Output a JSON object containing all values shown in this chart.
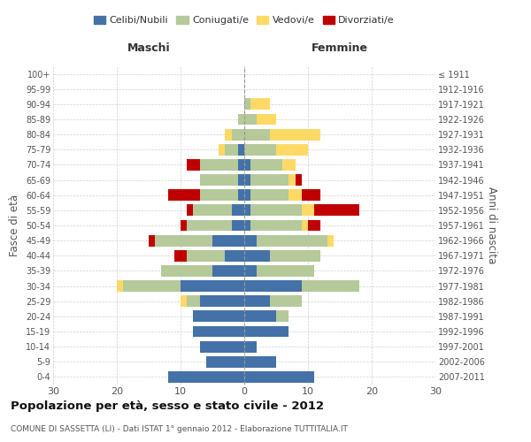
{
  "age_groups": [
    "0-4",
    "5-9",
    "10-14",
    "15-19",
    "20-24",
    "25-29",
    "30-34",
    "35-39",
    "40-44",
    "45-49",
    "50-54",
    "55-59",
    "60-64",
    "65-69",
    "70-74",
    "75-79",
    "80-84",
    "85-89",
    "90-94",
    "95-99",
    "100+"
  ],
  "birth_years": [
    "2007-2011",
    "2002-2006",
    "1997-2001",
    "1992-1996",
    "1987-1991",
    "1982-1986",
    "1977-1981",
    "1972-1976",
    "1967-1971",
    "1962-1966",
    "1957-1961",
    "1952-1956",
    "1947-1951",
    "1942-1946",
    "1937-1941",
    "1932-1936",
    "1927-1931",
    "1922-1926",
    "1917-1921",
    "1912-1916",
    "≤ 1911"
  ],
  "maschi": {
    "celibi": [
      12,
      6,
      7,
      8,
      8,
      7,
      10,
      5,
      3,
      5,
      2,
      2,
      1,
      1,
      1,
      1,
      0,
      0,
      0,
      0,
      0
    ],
    "coniugati": [
      0,
      0,
      0,
      0,
      0,
      2,
      9,
      8,
      6,
      9,
      7,
      6,
      6,
      6,
      6,
      2,
      2,
      1,
      0,
      0,
      0
    ],
    "vedovi": [
      0,
      0,
      0,
      0,
      0,
      1,
      1,
      0,
      0,
      0,
      0,
      0,
      0,
      0,
      0,
      1,
      1,
      0,
      0,
      0,
      0
    ],
    "divorziati": [
      0,
      0,
      0,
      0,
      0,
      0,
      0,
      0,
      2,
      1,
      1,
      1,
      5,
      0,
      2,
      0,
      0,
      0,
      0,
      0,
      0
    ]
  },
  "femmine": {
    "nubili": [
      11,
      5,
      2,
      7,
      5,
      4,
      9,
      2,
      4,
      2,
      1,
      1,
      1,
      1,
      1,
      0,
      0,
      0,
      0,
      0,
      0
    ],
    "coniugate": [
      0,
      0,
      0,
      0,
      2,
      5,
      9,
      9,
      8,
      11,
      8,
      8,
      6,
      6,
      5,
      5,
      4,
      2,
      1,
      0,
      0
    ],
    "vedove": [
      0,
      0,
      0,
      0,
      0,
      0,
      0,
      0,
      0,
      1,
      1,
      2,
      2,
      1,
      2,
      5,
      8,
      3,
      3,
      0,
      0
    ],
    "divorziate": [
      0,
      0,
      0,
      0,
      0,
      0,
      0,
      0,
      0,
      0,
      2,
      7,
      3,
      1,
      0,
      0,
      0,
      0,
      0,
      0,
      0
    ]
  },
  "colors": {
    "celibi": "#4472a8",
    "coniugati": "#b5c99a",
    "vedovi": "#ffd966",
    "divorziati": "#c00000"
  },
  "title": "Popolazione per età, sesso e stato civile - 2012",
  "subtitle": "COMUNE DI SASSETTA (LI) - Dati ISTAT 1° gennaio 2012 - Elaborazione TUTTITALIA.IT",
  "ylabel_left": "Fasce di età",
  "ylabel_right": "Anni di nascita",
  "xlabel_left": "Maschi",
  "xlabel_right": "Femmine",
  "xlim": 30,
  "bg_color": "#ffffff",
  "grid_color": "#cccccc"
}
